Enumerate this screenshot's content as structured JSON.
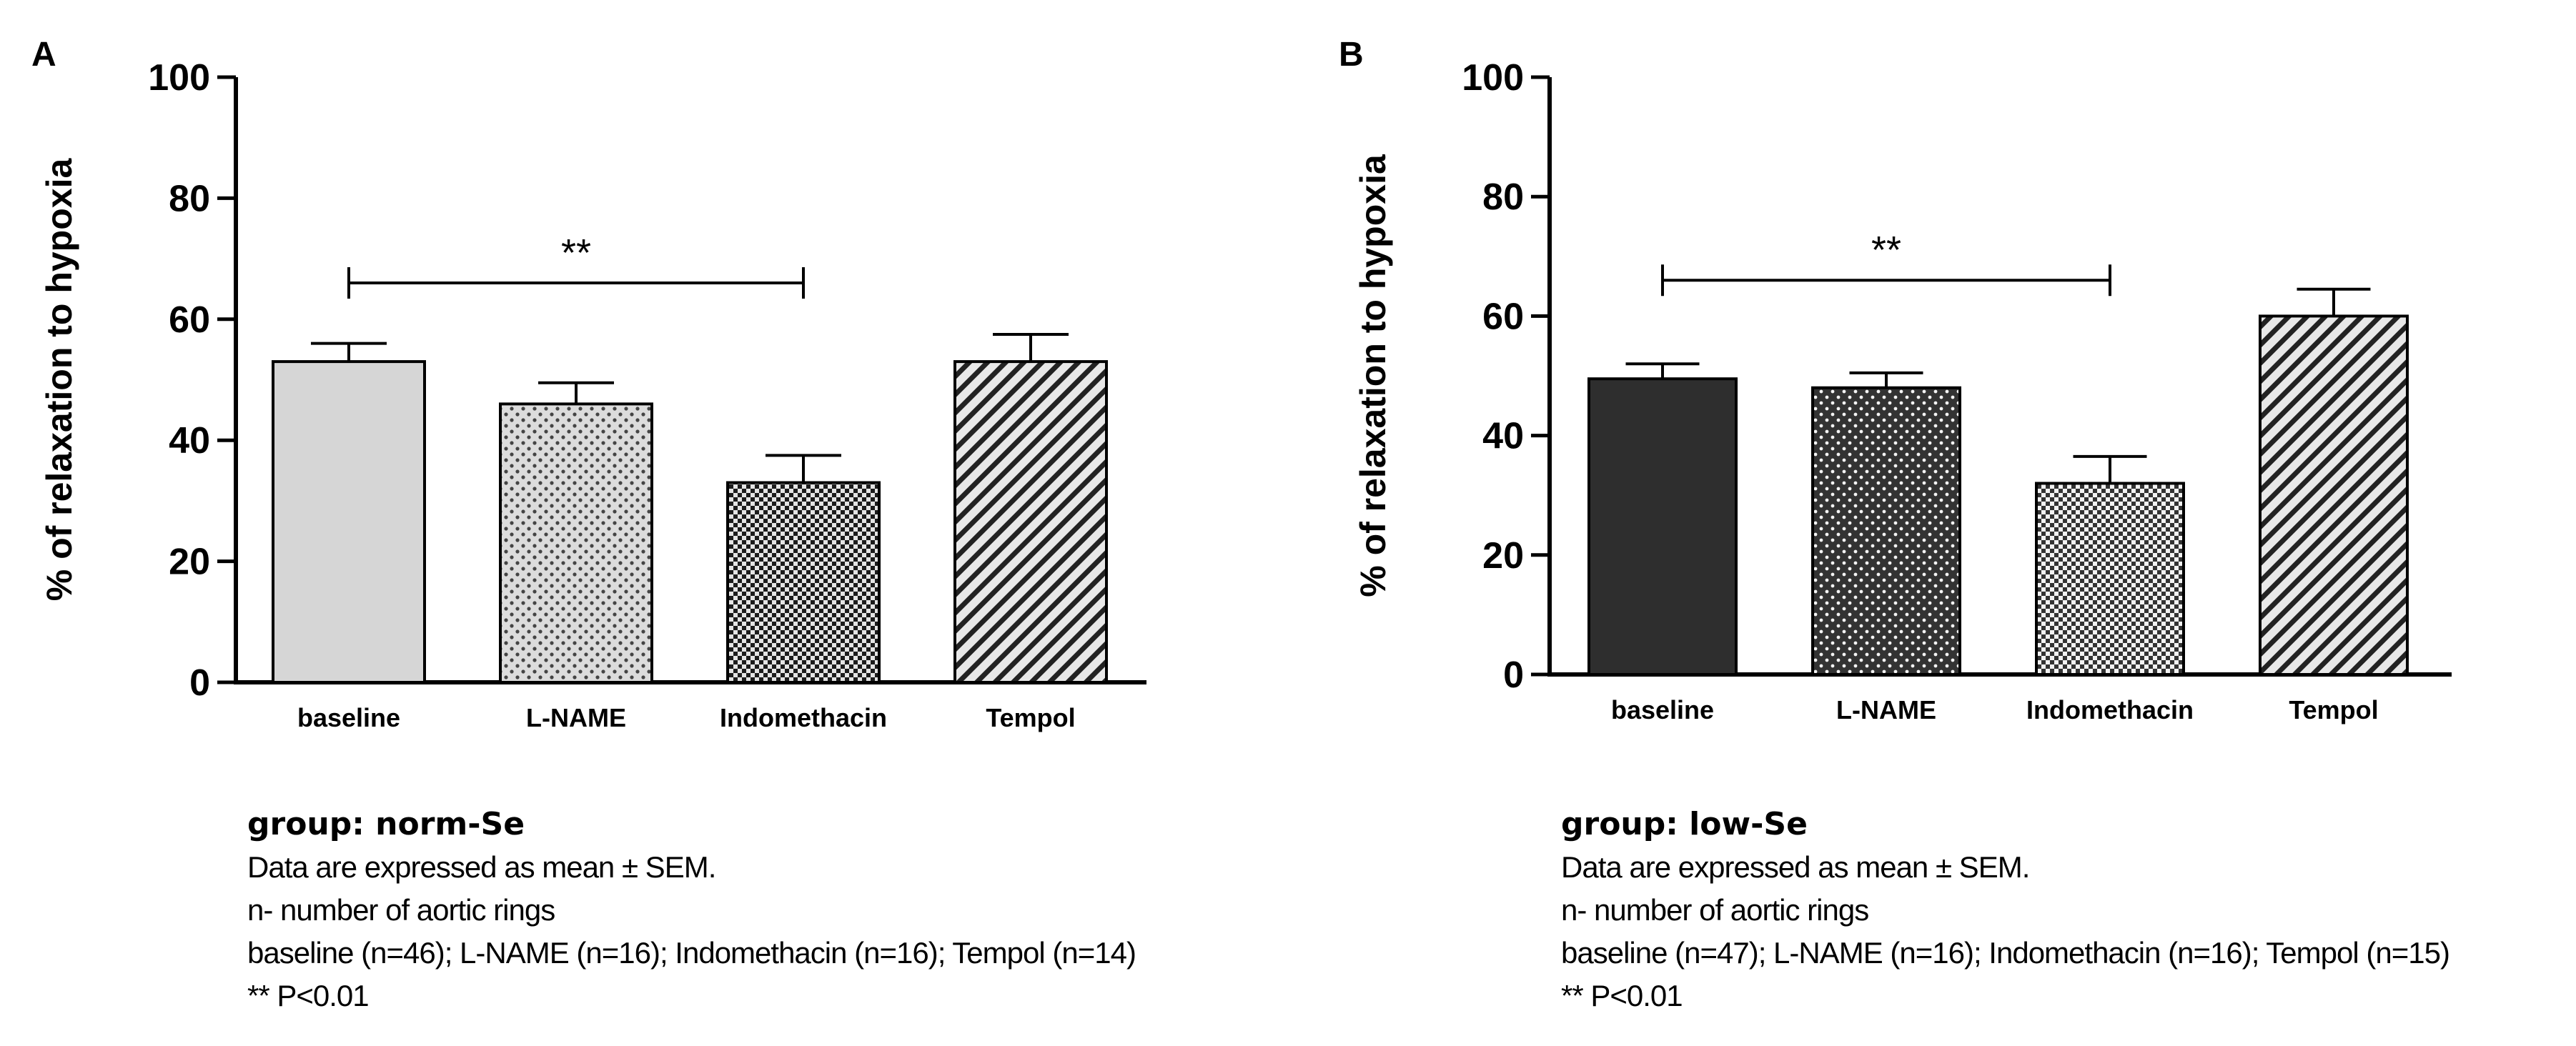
{
  "chart_data": [
    {
      "type": "bar",
      "panel_label": "A",
      "ylabel": "% of relaxation to hypoxia",
      "xlabel": "",
      "ylim": [
        0,
        100
      ],
      "yticks": [
        0,
        20,
        40,
        60,
        80,
        100
      ],
      "categories": [
        "baseline",
        "L-NAME",
        "Indomethacin",
        "Tempol"
      ],
      "values": [
        53,
        46,
        33,
        53
      ],
      "errors": [
        3,
        3.5,
        4.5,
        4.5
      ],
      "fills": [
        "solid-light-gray",
        "dotted-light",
        "checkered-dark",
        "diagonal-hatch"
      ],
      "significance": {
        "from": "baseline",
        "to": "Indomethacin",
        "label": "**",
        "y": 66
      },
      "caption": {
        "title": "group: norm-Se",
        "lines": [
          "Data are expressed as mean ± SEM.",
          "n- number of aortic rings",
          "baseline (n=46); L-NAME (n=16); Indomethacin (n=16); Tempol (n=14)",
          "** P<0.01"
        ]
      }
    },
    {
      "type": "bar",
      "panel_label": "B",
      "ylabel": "% of relaxation to hypoxia",
      "xlabel": "",
      "ylim": [
        0,
        100
      ],
      "yticks": [
        0,
        20,
        40,
        60,
        80,
        100
      ],
      "categories": [
        "baseline",
        "L-NAME",
        "Indomethacin",
        "Tempol"
      ],
      "values": [
        49.5,
        48,
        32,
        60
      ],
      "errors": [
        2.5,
        2.5,
        4.5,
        4.5
      ],
      "fills": [
        "solid-dark",
        "dotted-dark",
        "checkered-light",
        "diagonal-hatch"
      ],
      "significance": {
        "from": "baseline",
        "to": "Indomethacin",
        "label": "**",
        "y": 66
      },
      "caption": {
        "title": "group: low-Se",
        "lines": [
          "Data are expressed as mean ± SEM.",
          "n- number of aortic rings",
          "baseline (n=47); L-NAME (n=16); Indomethacin (n=16); Tempol (n=15)",
          "** P<0.01"
        ]
      }
    }
  ]
}
